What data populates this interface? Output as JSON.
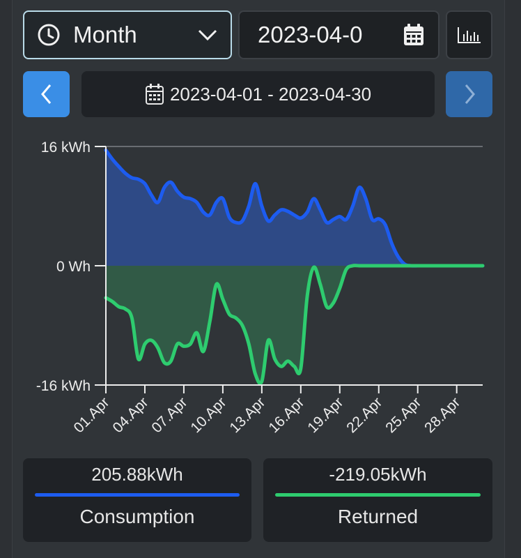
{
  "controls": {
    "period": "Month",
    "date_value": "2023-04-0",
    "range": "2023-04-01 - 2023-04-30"
  },
  "icons": {
    "period": "clock-icon",
    "dropdown": "chevron-down-icon",
    "date": "calendar-icon",
    "chart_type": "bar-chart-icon",
    "prev": "chevron-left-icon",
    "next": "chevron-right-icon"
  },
  "colors": {
    "consumption": "#1d5cf0",
    "returned": "#2ecc6f",
    "accent": "#3a8ee6"
  },
  "chart_data": {
    "type": "area",
    "y_tick_labels": [
      "16 kWh",
      "0 Wh",
      "-16 kWh"
    ],
    "y_ticks": [
      16,
      0,
      -16
    ],
    "ylim": [
      -16,
      16
    ],
    "x_tick_labels": [
      "01.Apr",
      "04.Apr",
      "07.Apr",
      "10.Apr",
      "13.Apr",
      "16.Apr",
      "19.Apr",
      "22.Apr",
      "25.Apr",
      "28.Apr"
    ],
    "x_tick_days": [
      1,
      4,
      7,
      10,
      13,
      16,
      19,
      22,
      25,
      28
    ],
    "xlim": [
      1,
      30
    ],
    "grid": true,
    "series": [
      {
        "name": "Consumption",
        "x": [
          1,
          1.5,
          2,
          2.5,
          3,
          3.5,
          4,
          4.5,
          5,
          5.5,
          6,
          6.5,
          7,
          7.5,
          8,
          8.5,
          9,
          9.5,
          10,
          10.5,
          11,
          11.5,
          12,
          12.5,
          13,
          13.5,
          14,
          14.5,
          15,
          15.5,
          16,
          16.5,
          17,
          17.5,
          18,
          18.5,
          19,
          19.5,
          20,
          20.5,
          21,
          21.5,
          22,
          22.5,
          23,
          23.5,
          24,
          24.5,
          25,
          25.5,
          26,
          26.5,
          27,
          28,
          29,
          30
        ],
        "values": [
          15.5,
          14.3,
          13.3,
          12.4,
          11.8,
          11.6,
          11,
          9.5,
          8.5,
          10.5,
          11.2,
          10,
          9.2,
          9,
          8.5,
          7.2,
          6.8,
          8.5,
          9,
          6.5,
          5.8,
          6,
          8,
          11,
          8,
          6,
          6.8,
          7.5,
          7.3,
          6.8,
          6.4,
          7.2,
          9,
          7.5,
          5.8,
          6.2,
          6.6,
          6.2,
          8,
          10.5,
          9,
          6.2,
          6.3,
          5.5,
          3,
          1.2,
          0.2,
          0,
          0,
          0,
          0,
          0,
          0,
          0,
          0,
          0
        ]
      },
      {
        "name": "Returned",
        "x": [
          1,
          1.5,
          2,
          2.5,
          3,
          3.5,
          4,
          4.5,
          5,
          5.5,
          6,
          6.5,
          7,
          7.5,
          8,
          8.5,
          9,
          9.5,
          10,
          10.5,
          11,
          11.5,
          12,
          12.5,
          13,
          13.5,
          14,
          14.5,
          15,
          15.5,
          16,
          16.5,
          17,
          17.5,
          18,
          18.5,
          19,
          19.5,
          20,
          20.5,
          21,
          21.5,
          22,
          22.5,
          23,
          23.5,
          24,
          24.5,
          25,
          25.5,
          26,
          26.5,
          27,
          28,
          29,
          30
        ],
        "values": [
          -4.3,
          -4.8,
          -5.5,
          -5.8,
          -7,
          -12.5,
          -10.5,
          -10,
          -11,
          -13,
          -12.8,
          -10.5,
          -10.8,
          -10.5,
          -9,
          -11.5,
          -7.5,
          -2.5,
          -4.5,
          -6.5,
          -7,
          -8,
          -10.5,
          -14.5,
          -15.5,
          -10,
          -12.5,
          -13.5,
          -12.8,
          -13.5,
          -13.8,
          -4,
          -0.2,
          -2.5,
          -5.5,
          -5,
          -3,
          -0.5,
          0,
          0,
          0,
          0,
          0,
          0,
          0,
          0,
          0,
          0,
          0,
          0,
          0,
          0,
          0,
          0,
          0,
          0
        ]
      }
    ]
  },
  "summary": [
    {
      "value": "205.88kWh",
      "label": "Consumption"
    },
    {
      "value": "-219.05kWh",
      "label": "Returned"
    }
  ]
}
